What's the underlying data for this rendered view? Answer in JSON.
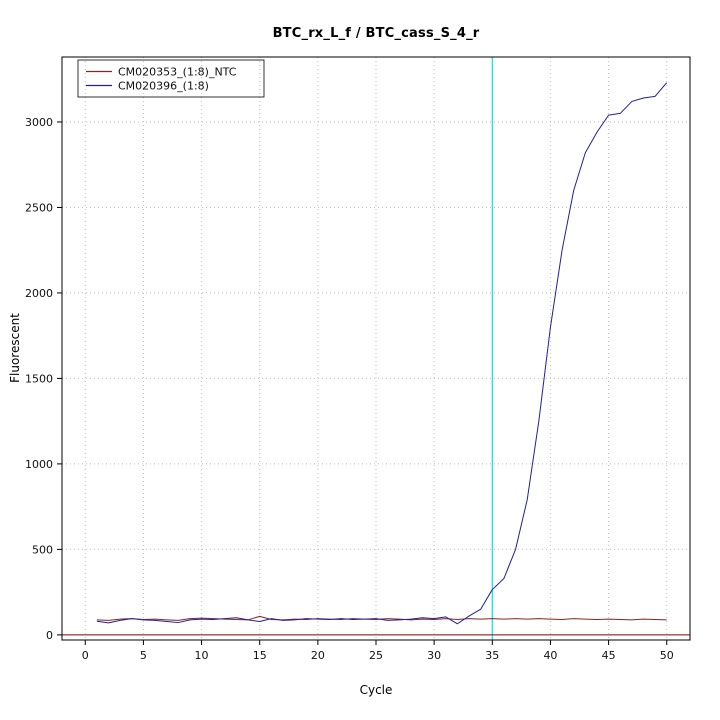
{
  "chart_data": {
    "type": "line",
    "title": "BTC_rx_L_f / BTC_cass_S_4_r",
    "xlabel": "Cycle",
    "ylabel": "Fluorescent",
    "xlim": [
      -2,
      52
    ],
    "ylim": [
      -30,
      3380
    ],
    "xticks": [
      0,
      5,
      10,
      15,
      20,
      25,
      30,
      35,
      40,
      45,
      50
    ],
    "yticks": [
      0,
      500,
      1000,
      1500,
      2000,
      2500,
      3000
    ],
    "grid": "dotted",
    "threshold_cycle": 35,
    "colors": {
      "grid": "#BEBEBE",
      "threshold": "#00E5EE",
      "baseline": "#8B0000",
      "axis": "#000000"
    },
    "legend": {
      "position": "top-left",
      "entries": [
        {
          "label": "CM020353_(1:8)_NTC",
          "color": "#8B2323"
        },
        {
          "label": "CM020396_(1:8)",
          "color": "#20209A"
        }
      ]
    },
    "x": [
      1,
      2,
      3,
      4,
      5,
      6,
      7,
      8,
      9,
      10,
      11,
      12,
      13,
      14,
      15,
      16,
      17,
      18,
      19,
      20,
      21,
      22,
      23,
      24,
      25,
      26,
      27,
      28,
      29,
      30,
      31,
      32,
      33,
      34,
      35,
      36,
      37,
      38,
      39,
      40,
      41,
      42,
      43,
      44,
      45,
      46,
      47,
      48,
      49,
      50
    ],
    "series": [
      {
        "name": "CM020353_(1:8)_NTC",
        "color": "#8B2323",
        "values": [
          88,
          85,
          92,
          95,
          90,
          92,
          88,
          85,
          95,
          98,
          95,
          92,
          90,
          88,
          108,
          90,
          88,
          92,
          90,
          95,
          92,
          90,
          95,
          92,
          90,
          95,
          92,
          88,
          92,
          90,
          95,
          90,
          95,
          92,
          95,
          92,
          95,
          92,
          95,
          92,
          90,
          95,
          92,
          90,
          92,
          90,
          88,
          92,
          90,
          88
        ]
      },
      {
        "name": "CM020396_(1:8)",
        "color": "#20209A",
        "values": [
          80,
          70,
          85,
          95,
          88,
          85,
          78,
          72,
          88,
          92,
          90,
          95,
          100,
          88,
          78,
          95,
          85,
          88,
          95,
          92,
          90,
          95,
          90,
          92,
          95,
          85,
          88,
          92,
          100,
          95,
          105,
          65,
          110,
          150,
          265,
          330,
          500,
          790,
          1250,
          1800,
          2250,
          2600,
          2820,
          2940,
          3040,
          3050,
          3120,
          3140,
          3150,
          3230
        ]
      }
    ]
  }
}
